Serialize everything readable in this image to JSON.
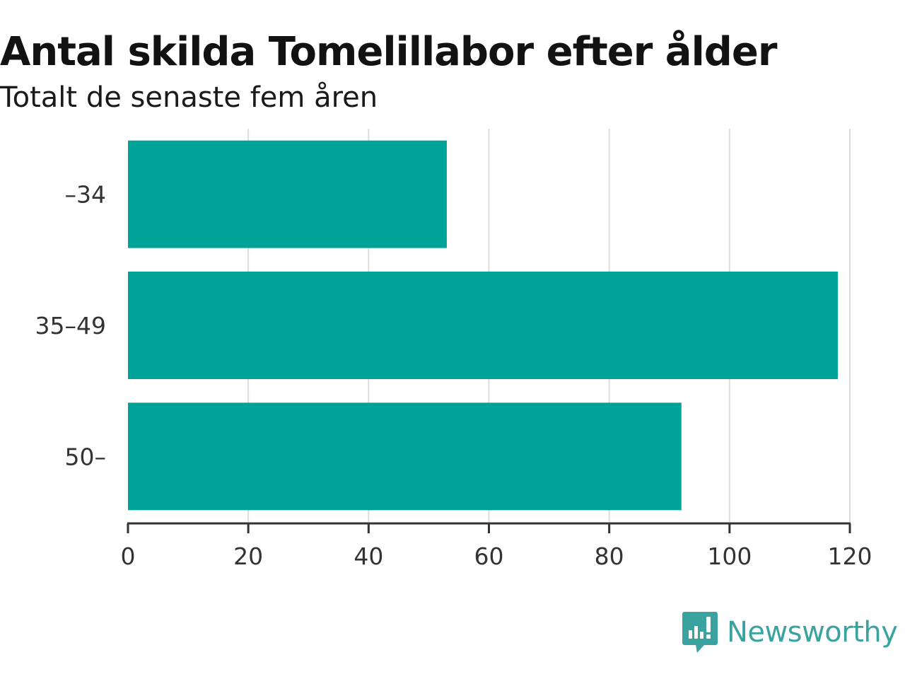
{
  "chart_data": {
    "type": "bar",
    "orientation": "horizontal",
    "title": "Antal skilda Tomelillabor efter ålder",
    "subtitle": "Totalt de senaste fem åren",
    "categories": [
      "–34",
      "35–49",
      "50–"
    ],
    "values": [
      53,
      118,
      92
    ],
    "xlim": [
      0,
      120
    ],
    "xticks": [
      0,
      20,
      40,
      60,
      80,
      100,
      120
    ],
    "xlabel": "",
    "ylabel": "",
    "grid": "vertical",
    "bar_color": "#00a398"
  },
  "brand": {
    "name": "Newsworthy",
    "icon": "newsworthy-logo-icon",
    "color": "#3aa3a0"
  }
}
